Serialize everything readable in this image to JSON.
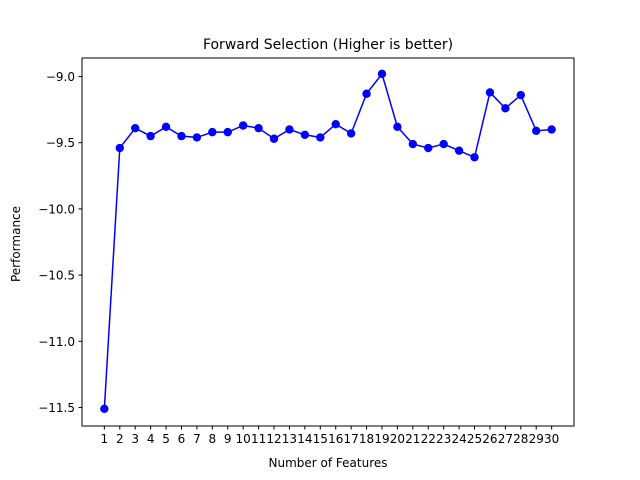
{
  "chart_data": {
    "type": "line",
    "title": "Forward Selection (Higher is better)",
    "xlabel": "Number of Features",
    "ylabel": "Performance",
    "x": [
      1,
      2,
      3,
      4,
      5,
      6,
      7,
      8,
      9,
      10,
      11,
      12,
      13,
      14,
      15,
      16,
      17,
      18,
      19,
      20,
      21,
      22,
      23,
      24,
      25,
      26,
      27,
      28,
      29,
      30
    ],
    "series": [
      {
        "values": [
          -11.51,
          -9.54,
          -9.39,
          -9.45,
          -9.38,
          -9.45,
          -9.46,
          -9.42,
          -9.42,
          -9.37,
          -9.39,
          -9.47,
          -9.4,
          -9.44,
          -9.46,
          -9.36,
          -9.43,
          -9.13,
          -8.98,
          -9.38,
          -9.51,
          -9.54,
          -9.51,
          -9.56,
          -9.61,
          -9.12,
          -9.24,
          -9.14,
          -9.41,
          -9.4
        ],
        "color": "#0000ff"
      }
    ],
    "xticks": [
      "1",
      "2",
      "3",
      "4",
      "5",
      "6",
      "7",
      "8",
      "9",
      "10",
      "11",
      "12",
      "13",
      "14",
      "15",
      "16",
      "17",
      "18",
      "19",
      "20",
      "21",
      "22",
      "23",
      "24",
      "25",
      "26",
      "27",
      "28",
      "29",
      "30"
    ],
    "yticks": [
      -9.0,
      -9.5,
      -10.0,
      -10.5,
      -11.0,
      -11.5
    ],
    "ytick_labels": [
      "−9.0",
      "−9.5",
      "−10.0",
      "−10.5",
      "−11.0",
      "−11.5"
    ],
    "xlim": [
      -0.45,
      31.45
    ],
    "ylim": [
      -11.64,
      -8.86
    ],
    "grid": false,
    "legend": "none"
  }
}
